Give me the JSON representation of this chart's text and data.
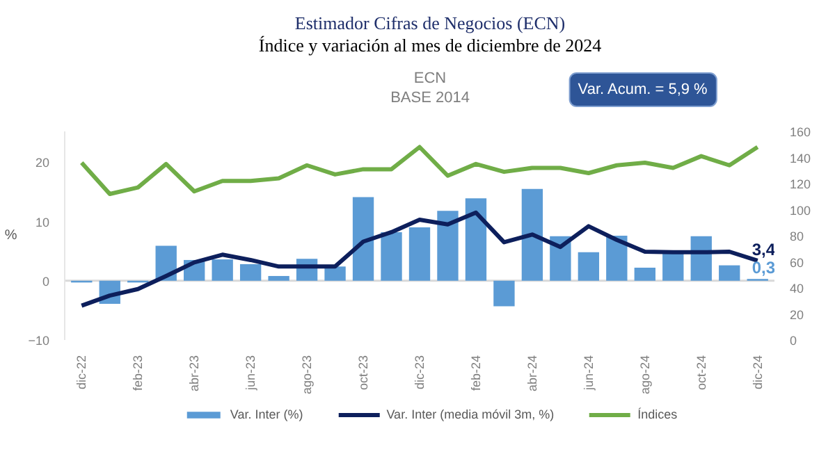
{
  "chart_data": {
    "type": "bar",
    "title": "Estimador Cifras de Negocios (ECN)",
    "subtitle": "Índice y variación al mes de diciembre de 2024",
    "annotations": [
      "ECN",
      "BASE 2014",
      "Var. Acum. = 5,9 %"
    ],
    "ylabel": "%",
    "categories": [
      "dic-22",
      null,
      "feb-23",
      null,
      "abr-23",
      null,
      "jun-23",
      null,
      "ago-23",
      null,
      "oct-23",
      null,
      "dic-23",
      null,
      "feb-24",
      null,
      "abr-24",
      null,
      "jun-24",
      null,
      "ago-24",
      null,
      "oct-24",
      null,
      "dic-24"
    ],
    "series": [
      {
        "name": "Var. Inter (%)",
        "color": "#5b9bd5",
        "values": [
          -0.3,
          -3.9,
          -0.3,
          5.9,
          3.5,
          3.6,
          2.8,
          0.8,
          3.7,
          2.4,
          14.1,
          8.2,
          9.0,
          11.8,
          13.9,
          -4.3,
          15.5,
          7.5,
          4.8,
          7.6,
          2.2,
          4.8,
          7.5,
          2.6,
          0.3
        ],
        "value_labels": [
          null,
          null,
          null,
          null,
          null,
          null,
          null,
          null,
          null,
          null,
          null,
          null,
          null,
          null,
          null,
          null,
          null,
          null,
          null,
          null,
          null,
          null,
          null,
          null,
          "0,3"
        ]
      },
      {
        "name": "Var. Inter (media móvil 3m, %)",
        "type": "line",
        "color": "#0d1f5c",
        "values": [
          -4.2,
          -2.5,
          -1.4,
          0.8,
          3.1,
          4.4,
          3.5,
          2.4,
          2.4,
          2.4,
          6.6,
          8.2,
          10.3,
          9.5,
          11.5,
          6.5,
          7.8,
          5.7,
          9.2,
          6.9,
          4.9,
          4.8,
          4.8,
          4.9,
          3.4
        ],
        "value_labels": [
          null,
          null,
          null,
          null,
          null,
          null,
          null,
          null,
          null,
          null,
          null,
          null,
          null,
          null,
          null,
          null,
          null,
          null,
          null,
          null,
          null,
          null,
          null,
          null,
          "3,4"
        ]
      },
      {
        "name": "Índices",
        "type": "line",
        "axis": "y2",
        "color": "#70ad47",
        "values": [
          136,
          112,
          117,
          135,
          114,
          122,
          122,
          124,
          134,
          127,
          131,
          131,
          148,
          126,
          135,
          129,
          132,
          132,
          128,
          134,
          136,
          132,
          141,
          134,
          148
        ]
      }
    ],
    "ylim": [
      -10,
      25.2
    ],
    "yticks": [
      -10,
      0,
      10,
      20
    ],
    "y2lim": [
      0,
      160
    ],
    "y2ticks": [
      0,
      20,
      40,
      60,
      80,
      100,
      120,
      140,
      160
    ],
    "ref_lines": [
      {
        "axis": "y",
        "value": 0
      }
    ],
    "grid": false,
    "legend": "bottom",
    "line_style": "solid",
    "marker": "none"
  }
}
